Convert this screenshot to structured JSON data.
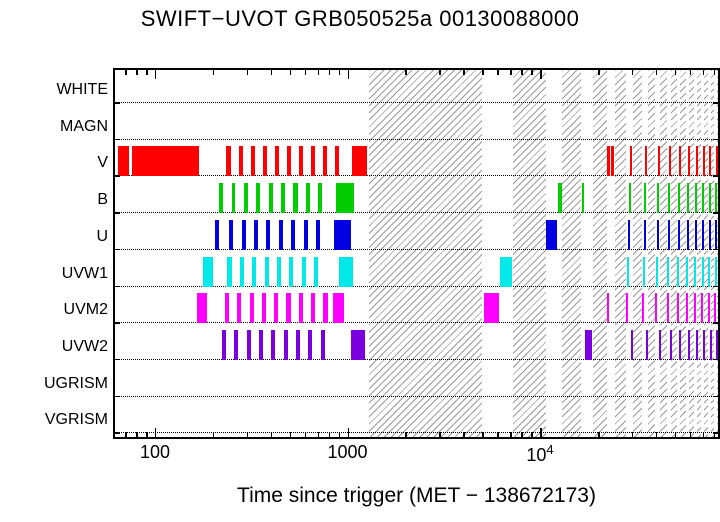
{
  "chart_data": {
    "type": "interval-timeline",
    "title": "SWIFT−UVOT GRB050525a 00130088000",
    "xlabel": "Time since trigger (MET − 138672173)",
    "xscale": "log",
    "xlim": [
      62,
      84000
    ],
    "grid": "dotted-row-baselines",
    "legend": "none",
    "xticks": [
      {
        "value": 100,
        "label": "100"
      },
      {
        "value": 1000,
        "label": "1000"
      },
      {
        "value": 10000,
        "label": "10^4"
      }
    ],
    "ylabels": [
      "WHITE",
      "MAGN",
      "V",
      "B",
      "U",
      "UVW1",
      "UVM2",
      "UVW2",
      "UGRISM",
      "VGRISM"
    ],
    "frame_color": "#000000",
    "hatch_color": "#9a9a9a",
    "hatch_regions": [
      [
        1300,
        5000
      ],
      [
        7200,
        10700
      ],
      [
        13000,
        16400
      ],
      [
        18800,
        22200
      ],
      [
        24600,
        28000
      ],
      [
        30400,
        33800
      ],
      [
        36200,
        39600
      ],
      [
        42000,
        45400
      ],
      [
        47800,
        51200
      ],
      [
        53600,
        57000
      ],
      [
        59400,
        62800
      ],
      [
        65200,
        68600
      ],
      [
        71000,
        74400
      ],
      [
        76800,
        80200
      ],
      [
        82600,
        84000
      ]
    ],
    "series": [
      {
        "name": "V",
        "row": "V",
        "color": "#ff0000",
        "intervals": [
          [
            64,
            73
          ],
          [
            76,
            170
          ],
          [
            235,
            247
          ],
          [
            272,
            286
          ],
          [
            314,
            330
          ],
          [
            363,
            381
          ],
          [
            419,
            440
          ],
          [
            484,
            508
          ],
          [
            559,
            587
          ],
          [
            646,
            678
          ],
          [
            746,
            783
          ],
          [
            862,
            905
          ],
          [
            1060,
            1260
          ],
          [
            22300,
            23100
          ],
          [
            23400,
            24100
          ],
          [
            29400,
            30000
          ],
          [
            35200,
            35800
          ],
          [
            41000,
            41600
          ],
          [
            46800,
            47400
          ],
          [
            52600,
            53200
          ],
          [
            58400,
            59000
          ],
          [
            64200,
            64800
          ],
          [
            70000,
            70600
          ],
          [
            75800,
            76400
          ],
          [
            81600,
            82200
          ]
        ]
      },
      {
        "name": "B",
        "row": "B",
        "color": "#00cc00",
        "intervals": [
          [
            215,
            226
          ],
          [
            250,
            262
          ],
          [
            290,
            304
          ],
          [
            336,
            353
          ],
          [
            390,
            409
          ],
          [
            452,
            474
          ],
          [
            524,
            550
          ],
          [
            608,
            638
          ],
          [
            705,
            740
          ],
          [
            870,
            1075
          ],
          [
            12400,
            12950
          ],
          [
            16500,
            16950
          ],
          [
            29000,
            29700
          ],
          [
            34800,
            35500
          ],
          [
            40600,
            41300
          ],
          [
            46400,
            47100
          ],
          [
            52200,
            52900
          ],
          [
            58000,
            58700
          ],
          [
            63800,
            64500
          ],
          [
            69600,
            70300
          ],
          [
            75400,
            76100
          ],
          [
            81200,
            81900
          ]
        ]
      },
      {
        "name": "U",
        "row": "U",
        "color": "#0000e0",
        "intervals": [
          [
            205,
            215
          ],
          [
            243,
            255
          ],
          [
            282,
            296
          ],
          [
            327,
            343
          ],
          [
            379,
            398
          ],
          [
            440,
            462
          ],
          [
            510,
            536
          ],
          [
            592,
            621
          ],
          [
            686,
            720
          ],
          [
            850,
            1040
          ],
          [
            10800,
            12200
          ],
          [
            28700,
            29300
          ],
          [
            34500,
            35100
          ],
          [
            40300,
            40900
          ],
          [
            46100,
            46700
          ],
          [
            51900,
            52500
          ],
          [
            57700,
            58300
          ],
          [
            63500,
            64100
          ],
          [
            69300,
            69900
          ],
          [
            75100,
            75700
          ],
          [
            80900,
            81500
          ]
        ]
      },
      {
        "name": "UVW1",
        "row": "UVW1",
        "color": "#00e8e8",
        "intervals": [
          [
            178,
            200
          ],
          [
            238,
            250
          ],
          [
            276,
            290
          ],
          [
            320,
            336
          ],
          [
            371,
            390
          ],
          [
            430,
            452
          ],
          [
            499,
            524
          ],
          [
            579,
            608
          ],
          [
            671,
            705
          ],
          [
            900,
            1070
          ],
          [
            6200,
            7150
          ],
          [
            28400,
            29000
          ],
          [
            34200,
            34800
          ],
          [
            40000,
            40600
          ],
          [
            45800,
            46400
          ],
          [
            51600,
            52200
          ],
          [
            57400,
            58000
          ],
          [
            63200,
            63800
          ],
          [
            69000,
            69600
          ],
          [
            74800,
            75400
          ],
          [
            80600,
            81200
          ]
        ]
      },
      {
        "name": "UVM2",
        "row": "UVM2",
        "color": "#ff00ff",
        "intervals": [
          [
            166,
            186
          ],
          [
            232,
            243
          ],
          [
            268,
            281
          ],
          [
            310,
            326
          ],
          [
            359,
            377
          ],
          [
            416,
            437
          ],
          [
            482,
            506
          ],
          [
            558,
            586
          ],
          [
            647,
            679
          ],
          [
            750,
            788
          ],
          [
            840,
            960
          ],
          [
            5100,
            6100
          ],
          [
            22300,
            22900
          ],
          [
            28100,
            28700
          ],
          [
            33900,
            34500
          ],
          [
            39700,
            40300
          ],
          [
            45500,
            46100
          ],
          [
            51300,
            51900
          ],
          [
            57100,
            57700
          ],
          [
            62900,
            63500
          ],
          [
            68700,
            69300
          ],
          [
            74500,
            75100
          ],
          [
            80300,
            80900
          ]
        ]
      },
      {
        "name": "UVW2",
        "row": "UVW2",
        "color": "#7a00e0",
        "intervals": [
          [
            222,
            233
          ],
          [
            258,
            271
          ],
          [
            299,
            314
          ],
          [
            347,
            364
          ],
          [
            402,
            422
          ],
          [
            466,
            489
          ],
          [
            540,
            567
          ],
          [
            626,
            657
          ],
          [
            726,
            762
          ],
          [
            1040,
            1230
          ],
          [
            17050,
            18700
          ],
          [
            29700,
            30300
          ],
          [
            35500,
            36100
          ],
          [
            41300,
            41900
          ],
          [
            47100,
            47700
          ],
          [
            52900,
            53500
          ],
          [
            58700,
            59300
          ],
          [
            64500,
            65100
          ],
          [
            70300,
            70900
          ],
          [
            76100,
            76700
          ],
          [
            81900,
            82500
          ]
        ]
      }
    ]
  }
}
